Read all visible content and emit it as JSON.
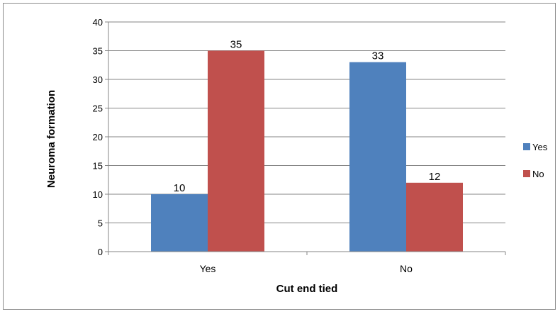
{
  "chart_data": {
    "type": "bar",
    "title": "",
    "xlabel": "Cut end tied",
    "ylabel": "Neuroma formation",
    "categories": [
      "Yes",
      "No"
    ],
    "series": [
      {
        "name": "Yes",
        "values": [
          10,
          33
        ],
        "color": "#4f81bd"
      },
      {
        "name": "No",
        "values": [
          35,
          12
        ],
        "color": "#c0504d"
      }
    ],
    "ylim": [
      0,
      40
    ],
    "yticks": [
      0,
      5,
      10,
      15,
      20,
      25,
      30,
      35,
      40
    ],
    "grid": true,
    "legend_position": "right"
  }
}
